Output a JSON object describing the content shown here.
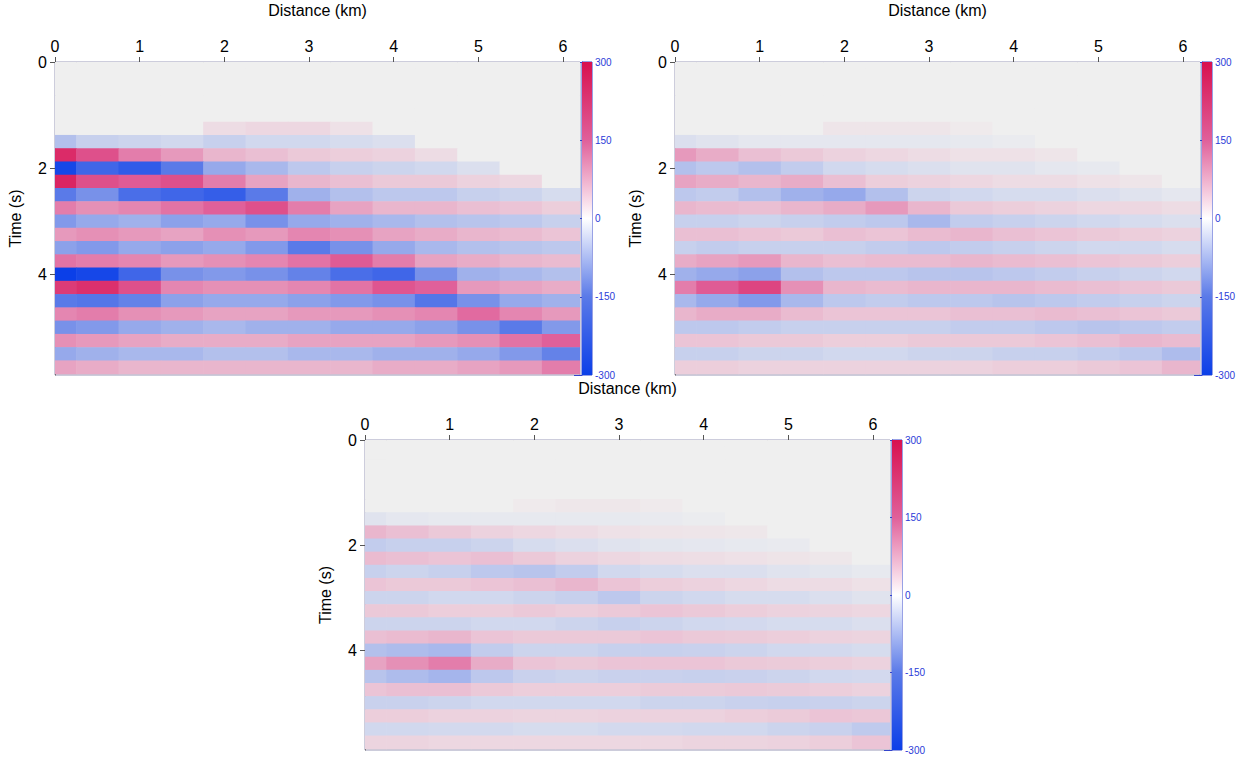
{
  "chart_data": [
    {
      "type": "heatmap",
      "x_label": "Distance (km)",
      "y_label": "Time (s)",
      "xlim": [
        0,
        6.2
      ],
      "xticks": [
        0,
        1,
        2,
        3,
        4,
        5,
        6
      ],
      "ylim": [
        0,
        5.9
      ],
      "yticks": [
        0,
        2,
        4
      ],
      "colorbar_range": [
        -300,
        300
      ],
      "colorbar_ticks": [
        -300,
        -150,
        0,
        150,
        300
      ],
      "x": [
        0,
        0.5,
        1,
        1.5,
        2,
        2.5,
        3,
        3.5,
        4,
        4.5,
        5,
        5.5,
        6
      ],
      "y": [
        0,
        0.25,
        0.5,
        0.75,
        1,
        1.25,
        1.5,
        1.75,
        2,
        2.25,
        2.5,
        2.75,
        3,
        3.25,
        3.5,
        3.75,
        4,
        4.25,
        4.5,
        4.75,
        5,
        5.25,
        5.5,
        5.75
      ],
      "values": [
        [
          0,
          0,
          0,
          0,
          0,
          0,
          0,
          0,
          0,
          0,
          0,
          0,
          0
        ],
        [
          0,
          0,
          0,
          0,
          0,
          0,
          0,
          0,
          0,
          0,
          0,
          0,
          0
        ],
        [
          0,
          0,
          0,
          0,
          0,
          0,
          0,
          0,
          0,
          0,
          0,
          0,
          0
        ],
        [
          0,
          0,
          0,
          0,
          0,
          0,
          0,
          0,
          0,
          0,
          0,
          0,
          0
        ],
        [
          0,
          0,
          0,
          0,
          0,
          0,
          0,
          0,
          0,
          0,
          0,
          0,
          0
        ],
        [
          0,
          0,
          0,
          0,
          20,
          25,
          25,
          15,
          0,
          0,
          0,
          0,
          0
        ],
        [
          -60,
          -40,
          -35,
          -30,
          -40,
          -30,
          -30,
          -25,
          -20,
          0,
          0,
          0,
          0
        ],
        [
          250,
          180,
          120,
          90,
          60,
          50,
          40,
          35,
          30,
          20,
          0,
          0,
          0
        ],
        [
          -280,
          -200,
          -230,
          -150,
          -90,
          -70,
          -50,
          -40,
          -35,
          -30,
          -20,
          0,
          0
        ],
        [
          260,
          180,
          160,
          180,
          120,
          80,
          60,
          50,
          40,
          40,
          30,
          25,
          0
        ],
        [
          -150,
          -120,
          -180,
          -200,
          -220,
          -150,
          -80,
          -60,
          -50,
          -50,
          -40,
          -35,
          -25
        ],
        [
          120,
          100,
          110,
          130,
          150,
          180,
          120,
          80,
          60,
          60,
          50,
          45,
          35
        ],
        [
          -110,
          -90,
          -80,
          -100,
          -90,
          -120,
          -90,
          -80,
          -70,
          -60,
          -55,
          -50,
          -40
        ],
        [
          90,
          100,
          90,
          80,
          100,
          90,
          110,
          100,
          80,
          70,
          60,
          55,
          45
        ],
        [
          -100,
          -110,
          -90,
          -100,
          -90,
          -110,
          -150,
          -120,
          -90,
          -70,
          -60,
          -55,
          -50
        ],
        [
          130,
          120,
          110,
          90,
          100,
          110,
          130,
          160,
          120,
          80,
          70,
          60,
          55
        ],
        [
          -300,
          -280,
          -200,
          -120,
          -110,
          -120,
          -140,
          -180,
          -200,
          -120,
          -80,
          -70,
          -60
        ],
        [
          220,
          240,
          180,
          110,
          100,
          100,
          110,
          130,
          170,
          150,
          90,
          80,
          70
        ],
        [
          -150,
          -160,
          -140,
          -100,
          -90,
          -90,
          -100,
          -110,
          -120,
          -160,
          -120,
          -90,
          -80
        ],
        [
          110,
          120,
          100,
          90,
          80,
          80,
          90,
          90,
          100,
          110,
          140,
          110,
          90
        ],
        [
          -120,
          -110,
          -90,
          -80,
          -70,
          -80,
          -80,
          -90,
          -90,
          -100,
          -120,
          -150,
          -110
        ],
        [
          100,
          90,
          80,
          70,
          70,
          70,
          80,
          80,
          80,
          90,
          100,
          130,
          150
        ],
        [
          -90,
          -80,
          -70,
          -70,
          -60,
          -60,
          -70,
          -70,
          -80,
          -80,
          -90,
          -110,
          -140
        ],
        [
          80,
          70,
          60,
          60,
          60,
          60,
          60,
          60,
          70,
          70,
          80,
          90,
          120
        ]
      ]
    },
    {
      "type": "heatmap",
      "x_label": "Distance (km)",
      "y_label": "Time (s)",
      "xlim": [
        0,
        6.2
      ],
      "xticks": [
        0,
        1,
        2,
        3,
        4,
        5,
        6
      ],
      "ylim": [
        0,
        5.9
      ],
      "yticks": [
        0,
        2,
        4
      ],
      "colorbar_range": [
        -300,
        300
      ],
      "colorbar_ticks": [
        -300,
        -150,
        0,
        150,
        300
      ],
      "x": [
        0,
        0.5,
        1,
        1.5,
        2,
        2.5,
        3,
        3.5,
        4,
        4.5,
        5,
        5.5,
        6
      ],
      "y": [
        0,
        0.25,
        0.5,
        0.75,
        1,
        1.25,
        1.5,
        1.75,
        2,
        2.25,
        2.5,
        2.75,
        3,
        3.25,
        3.5,
        3.75,
        4,
        4.25,
        4.5,
        4.75,
        5,
        5.25,
        5.5,
        5.75
      ],
      "values": [
        [
          0,
          0,
          0,
          0,
          0,
          0,
          0,
          0,
          0,
          0,
          0,
          0,
          0
        ],
        [
          0,
          0,
          0,
          0,
          0,
          0,
          0,
          0,
          0,
          0,
          0,
          0,
          0
        ],
        [
          0,
          0,
          0,
          0,
          0,
          0,
          0,
          0,
          0,
          0,
          0,
          0,
          0
        ],
        [
          0,
          0,
          0,
          0,
          0,
          0,
          0,
          0,
          0,
          0,
          0,
          0,
          0
        ],
        [
          0,
          0,
          0,
          0,
          0,
          0,
          0,
          0,
          0,
          0,
          0,
          0,
          0
        ],
        [
          0,
          0,
          0,
          0,
          10,
          10,
          10,
          5,
          0,
          0,
          0,
          0,
          0
        ],
        [
          -20,
          -15,
          -10,
          -10,
          -10,
          -10,
          -10,
          -8,
          -5,
          0,
          0,
          0,
          0
        ],
        [
          90,
          70,
          50,
          40,
          30,
          25,
          20,
          15,
          15,
          10,
          0,
          0,
          0
        ],
        [
          -60,
          -50,
          -60,
          -45,
          -30,
          -25,
          -20,
          -15,
          -15,
          -10,
          -8,
          0,
          0
        ],
        [
          80,
          70,
          60,
          70,
          50,
          35,
          30,
          25,
          20,
          20,
          15,
          10,
          0
        ],
        [
          -50,
          -45,
          -60,
          -80,
          -90,
          -60,
          -35,
          -30,
          -25,
          -25,
          -20,
          -15,
          -10
        ],
        [
          60,
          55,
          50,
          60,
          70,
          90,
          60,
          40,
          35,
          30,
          25,
          25,
          20
        ],
        [
          -40,
          -40,
          -35,
          -40,
          -45,
          -50,
          -70,
          -45,
          -40,
          -35,
          -30,
          -25,
          -20
        ],
        [
          50,
          50,
          45,
          40,
          50,
          45,
          55,
          60,
          50,
          45,
          40,
          35,
          30
        ],
        [
          -40,
          -45,
          -40,
          -40,
          -40,
          -45,
          -50,
          -45,
          -40,
          -35,
          -30,
          -30,
          -25
        ],
        [
          70,
          80,
          90,
          60,
          50,
          55,
          55,
          60,
          55,
          50,
          45,
          40,
          35
        ],
        [
          -80,
          -90,
          -100,
          -60,
          -50,
          -50,
          -55,
          -55,
          -50,
          -45,
          -40,
          -35,
          -30
        ],
        [
          120,
          160,
          200,
          100,
          60,
          55,
          60,
          60,
          60,
          55,
          50,
          45,
          40
        ],
        [
          -70,
          -90,
          -110,
          -70,
          -50,
          -45,
          -50,
          -50,
          -55,
          -50,
          -45,
          -40,
          -35
        ],
        [
          60,
          70,
          70,
          55,
          45,
          45,
          45,
          50,
          50,
          55,
          50,
          45,
          40
        ],
        [
          -50,
          -50,
          -45,
          -40,
          -40,
          -40,
          -40,
          -45,
          -45,
          -50,
          -55,
          -50,
          -45
        ],
        [
          45,
          45,
          40,
          40,
          35,
          35,
          40,
          40,
          40,
          45,
          50,
          60,
          55
        ],
        [
          -40,
          -40,
          -35,
          -35,
          -30,
          -30,
          -35,
          -35,
          -40,
          -40,
          -45,
          -50,
          -65
        ],
        [
          35,
          35,
          30,
          30,
          30,
          30,
          30,
          30,
          35,
          35,
          40,
          45,
          60
        ]
      ]
    },
    {
      "type": "heatmap",
      "x_label": "Distance (km)",
      "y_label": "Time (s)",
      "xlim": [
        0,
        6.2
      ],
      "xticks": [
        0,
        1,
        2,
        3,
        4,
        5,
        6
      ],
      "ylim": [
        0,
        5.9
      ],
      "yticks": [
        0,
        2,
        4
      ],
      "colorbar_range": [
        -300,
        300
      ],
      "colorbar_ticks": [
        -300,
        -150,
        0,
        150,
        300
      ],
      "x": [
        0,
        0.5,
        1,
        1.5,
        2,
        2.5,
        3,
        3.5,
        4,
        4.5,
        5,
        5.5,
        6
      ],
      "y": [
        0,
        0.25,
        0.5,
        0.75,
        1,
        1.25,
        1.5,
        1.75,
        2,
        2.25,
        2.5,
        2.75,
        3,
        3.25,
        3.5,
        3.75,
        4,
        4.25,
        4.5,
        4.75,
        5,
        5.25,
        5.5,
        5.75
      ],
      "values": [
        [
          0,
          0,
          0,
          0,
          0,
          0,
          0,
          0,
          0,
          0,
          0,
          0,
          0
        ],
        [
          0,
          0,
          0,
          0,
          0,
          0,
          0,
          0,
          0,
          0,
          0,
          0,
          0
        ],
        [
          0,
          0,
          0,
          0,
          0,
          0,
          0,
          0,
          0,
          0,
          0,
          0,
          0
        ],
        [
          0,
          0,
          0,
          0,
          0,
          0,
          0,
          0,
          0,
          0,
          0,
          0,
          0
        ],
        [
          0,
          0,
          0,
          0,
          0,
          0,
          0,
          0,
          0,
          0,
          0,
          0,
          0
        ],
        [
          0,
          0,
          0,
          0,
          5,
          8,
          8,
          5,
          0,
          0,
          0,
          0,
          0
        ],
        [
          -15,
          -10,
          -8,
          -8,
          -8,
          -8,
          -8,
          -6,
          -4,
          0,
          0,
          0,
          0
        ],
        [
          60,
          50,
          40,
          30,
          25,
          20,
          15,
          12,
          10,
          8,
          0,
          0,
          0
        ],
        [
          -45,
          -40,
          -40,
          -35,
          -25,
          -20,
          -15,
          -12,
          -10,
          -8,
          -6,
          0,
          0
        ],
        [
          55,
          50,
          45,
          50,
          40,
          30,
          25,
          20,
          18,
          15,
          12,
          8,
          0
        ],
        [
          -40,
          -35,
          -40,
          -50,
          -55,
          -45,
          -30,
          -25,
          -20,
          -20,
          -15,
          -12,
          -8
        ],
        [
          45,
          40,
          40,
          45,
          50,
          60,
          45,
          35,
          30,
          25,
          20,
          20,
          15
        ],
        [
          -35,
          -35,
          -30,
          -30,
          -35,
          -40,
          -50,
          -35,
          -30,
          -25,
          -25,
          -20,
          -15
        ],
        [
          40,
          40,
          35,
          35,
          40,
          35,
          40,
          45,
          40,
          35,
          30,
          28,
          25
        ],
        [
          -35,
          -35,
          -35,
          -30,
          -30,
          -35,
          -40,
          -35,
          -30,
          -28,
          -25,
          -25,
          -20
        ],
        [
          50,
          55,
          60,
          45,
          40,
          40,
          40,
          45,
          40,
          38,
          35,
          30,
          28
        ],
        [
          -60,
          -65,
          -70,
          -45,
          -35,
          -35,
          -40,
          -40,
          -38,
          -35,
          -30,
          -28,
          -25
        ],
        [
          80,
          100,
          120,
          70,
          45,
          40,
          45,
          45,
          45,
          40,
          38,
          35,
          30
        ],
        [
          -55,
          -65,
          -75,
          -50,
          -38,
          -35,
          -38,
          -38,
          -40,
          -38,
          -35,
          -30,
          -28
        ],
        [
          45,
          50,
          50,
          40,
          35,
          35,
          35,
          38,
          38,
          40,
          38,
          35,
          30
        ],
        [
          -38,
          -38,
          -35,
          -30,
          -30,
          -30,
          -30,
          -35,
          -35,
          -38,
          -40,
          -38,
          -35
        ],
        [
          35,
          35,
          30,
          30,
          28,
          28,
          30,
          30,
          30,
          35,
          38,
          45,
          42
        ],
        [
          -30,
          -30,
          -28,
          -28,
          -25,
          -25,
          -28,
          -28,
          -30,
          -30,
          -35,
          -38,
          -48
        ],
        [
          28,
          28,
          25,
          25,
          25,
          25,
          25,
          25,
          28,
          28,
          30,
          35,
          45
        ]
      ]
    }
  ]
}
